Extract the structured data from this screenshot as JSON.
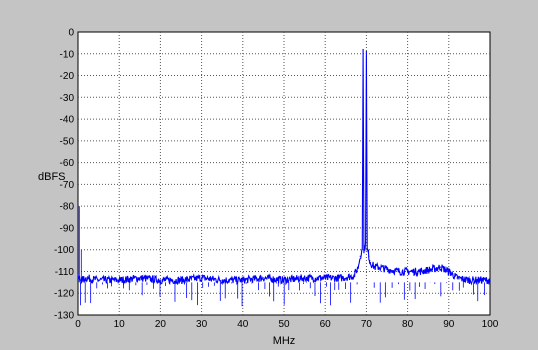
{
  "chart_data": {
    "type": "line",
    "title": "",
    "xlabel": "MHz",
    "ylabel": "dBFS",
    "xlim": [
      0,
      100
    ],
    "ylim": [
      -130,
      0
    ],
    "xticks": [
      0,
      10,
      20,
      30,
      40,
      50,
      60,
      70,
      80,
      90,
      100
    ],
    "yticks": [
      0,
      -10,
      -20,
      -30,
      -40,
      -50,
      -60,
      -70,
      -80,
      -90,
      -100,
      -110,
      -120,
      -130
    ],
    "grid": true,
    "series": [
      {
        "color": "#0000ff",
        "x": [
          0,
          1,
          2,
          5,
          10,
          15,
          20,
          25,
          30,
          35,
          40,
          45,
          50,
          55,
          60,
          64,
          67,
          68,
          68.5,
          69.0,
          69.2,
          69.4,
          69.6,
          69.8,
          70.0,
          70.2,
          70.4,
          70.6,
          70.8,
          71,
          72,
          73,
          75,
          78,
          80,
          83,
          86,
          88,
          90,
          92,
          95,
          98,
          100
        ],
        "y": [
          -113,
          -114,
          -113,
          -114,
          -114,
          -113,
          -114,
          -114,
          -113,
          -114,
          -114,
          -113,
          -114,
          -113,
          -113,
          -113,
          -112,
          -108,
          -103,
          -100,
          -8,
          -100,
          -99,
          -97,
          -9,
          -100,
          -101,
          -103,
          -105,
          -106,
          -108,
          -108,
          -109,
          -110,
          -110,
          -110,
          -109,
          -108,
          -110,
          -113,
          -114,
          -114,
          -114
        ]
      }
    ]
  }
}
